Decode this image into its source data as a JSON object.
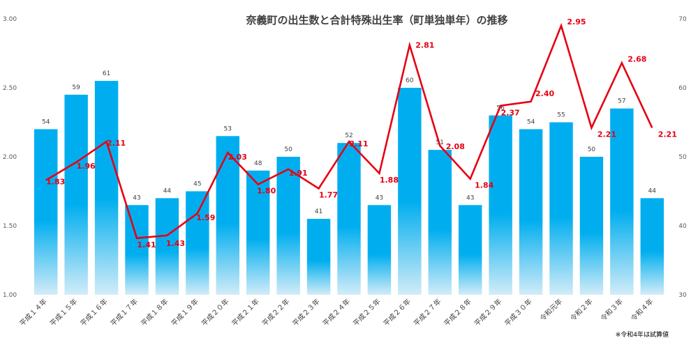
{
  "chart_data": {
    "type": "bar",
    "title": "奈義町の出生数と合計特殊出生率（町単独単年）の推移",
    "categories": [
      "平成１４年",
      "平成１５年",
      "平成１６年",
      "平成１７年",
      "平成１８年",
      "平成１９年",
      "平成２０年",
      "平成２１年",
      "平成２２年",
      "平成２３年",
      "平成２４年",
      "平成２５年",
      "平成２６年",
      "平成２７年",
      "平成２８年",
      "平成２９年",
      "平成３０年",
      "令和元年",
      "令和２年",
      "令和３年",
      "令和４年"
    ],
    "series": [
      {
        "name": "出生数",
        "type": "bar",
        "axis": "right",
        "values": [
          54,
          59,
          61,
          43,
          44,
          45,
          53,
          48,
          50,
          41,
          52,
          43,
          60,
          51,
          43,
          56,
          54,
          55,
          50,
          57,
          44
        ],
        "labels": [
          "54",
          "59",
          "61",
          "43",
          "44",
          "45",
          "53",
          "48",
          "50",
          "41",
          "52",
          "43",
          "60",
          "51",
          "43",
          "56",
          "54",
          "55",
          "50",
          "57",
          "44"
        ]
      },
      {
        "name": "合計特殊出生率",
        "type": "line",
        "axis": "left",
        "values": [
          1.83,
          1.96,
          2.11,
          1.41,
          1.43,
          1.59,
          2.03,
          1.8,
          1.91,
          1.77,
          2.11,
          1.88,
          2.81,
          2.08,
          1.84,
          2.37,
          2.4,
          2.95,
          2.21,
          2.68,
          2.21
        ],
        "labels": [
          "1.83",
          "1.96",
          "2.11",
          "1.41",
          "1.43",
          "1.59",
          "2.03",
          "1.80",
          "1.91",
          "1.77",
          "2.11",
          "1.88",
          "2.81",
          "2.08",
          "1.84",
          "2.37",
          "2.40",
          "2.95",
          "2.21",
          "2.68",
          "2.21"
        ]
      }
    ],
    "y_left": {
      "min": 1.0,
      "max": 3.0,
      "ticks": [
        "1.00",
        "1.50",
        "2.00",
        "2.50",
        "3.00"
      ]
    },
    "y_right": {
      "min": 30,
      "max": 70,
      "ticks": [
        "30",
        "40",
        "50",
        "60",
        "70"
      ]
    },
    "note": "※令和4年は試算値",
    "colors": {
      "bar_top": "#00aeef",
      "bar_bottom": "#d2ecf8",
      "line": "#e60012"
    }
  }
}
